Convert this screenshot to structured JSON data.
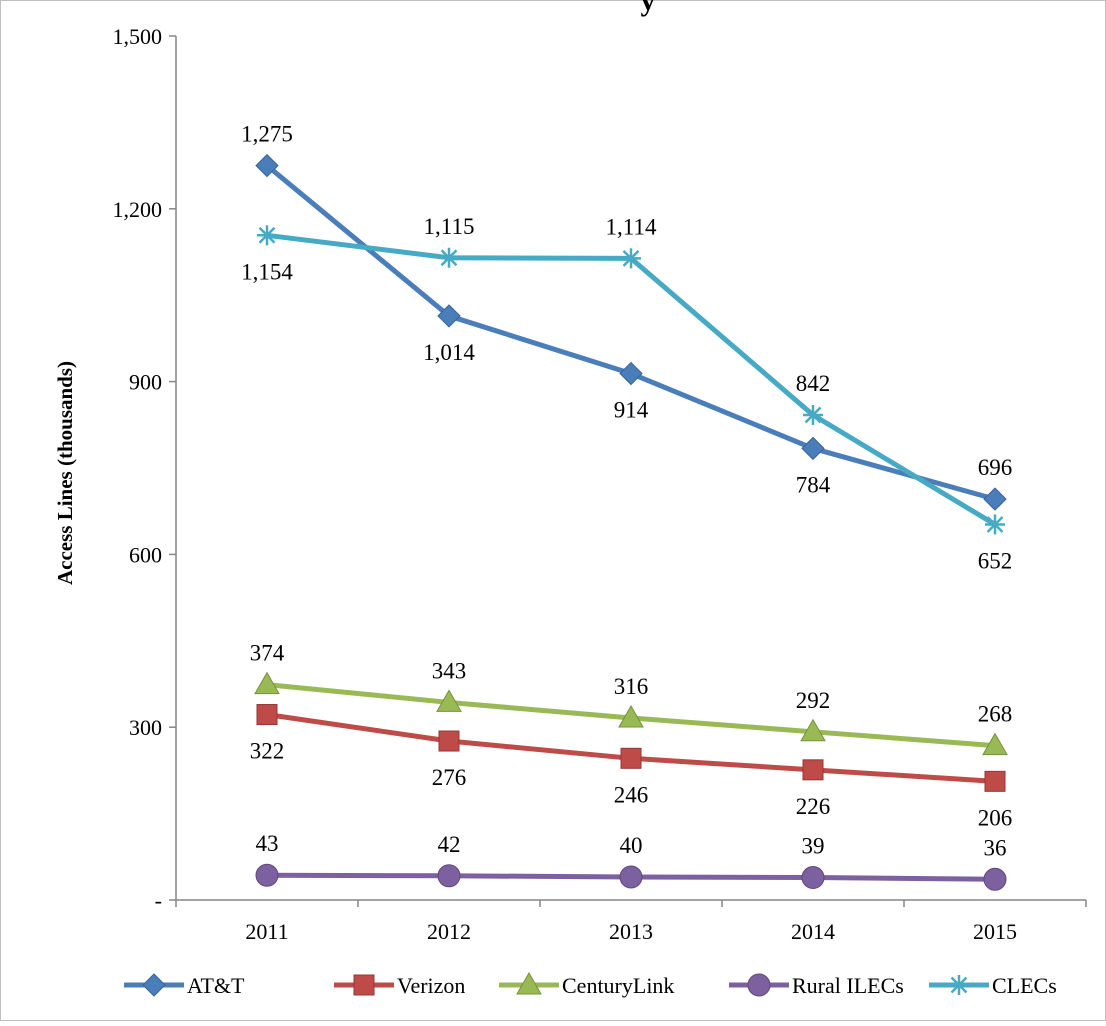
{
  "chart_data": {
    "type": "line",
    "title": "y",
    "xlabel": "",
    "ylabel": "Access Lines (thousands)",
    "categories": [
      "2011",
      "2012",
      "2013",
      "2014",
      "2015"
    ],
    "ylim": [
      0,
      1500
    ],
    "yticks": [
      0,
      300,
      600,
      900,
      1200,
      1500
    ],
    "ytick_labels": [
      "-",
      "300",
      "600",
      "900",
      "1,200",
      "1,500"
    ],
    "grid": false,
    "legend_position": "bottom",
    "series": [
      {
        "name": "AT&T",
        "color": "#4a7ebb",
        "marker": "diamond",
        "values": [
          1275,
          1014,
          914,
          784,
          696
        ],
        "labels": [
          "1,275",
          "1,014",
          "914",
          "784",
          "696"
        ],
        "label_positions": [
          "above",
          "below",
          "below",
          "below",
          "above"
        ]
      },
      {
        "name": "Verizon",
        "color": "#be4b48",
        "marker": "square",
        "values": [
          322,
          276,
          246,
          226,
          206
        ],
        "labels": [
          "322",
          "276",
          "246",
          "226",
          "206"
        ],
        "label_positions": [
          "below",
          "below",
          "below",
          "below",
          "below"
        ]
      },
      {
        "name": "CenturyLink",
        "color": "#98b954",
        "marker": "triangle",
        "values": [
          374,
          343,
          316,
          292,
          268
        ],
        "labels": [
          "374",
          "343",
          "316",
          "292",
          "268"
        ],
        "label_positions": [
          "above",
          "above",
          "above",
          "above",
          "above"
        ]
      },
      {
        "name": "Rural ILECs",
        "color": "#7d60a0",
        "marker": "circle",
        "values": [
          43,
          42,
          40,
          39,
          36
        ],
        "labels": [
          "43",
          "42",
          "40",
          "39",
          "36"
        ],
        "label_positions": [
          "above",
          "above",
          "above",
          "above",
          "above"
        ]
      },
      {
        "name": "CLECs",
        "color": "#46aac5",
        "marker": "star",
        "values": [
          1154,
          1115,
          1114,
          842,
          652
        ],
        "labels": [
          "1,154",
          "1,115",
          "1,114",
          "842",
          "652"
        ],
        "label_positions": [
          "below",
          "above",
          "above",
          "above",
          "below"
        ]
      }
    ]
  }
}
